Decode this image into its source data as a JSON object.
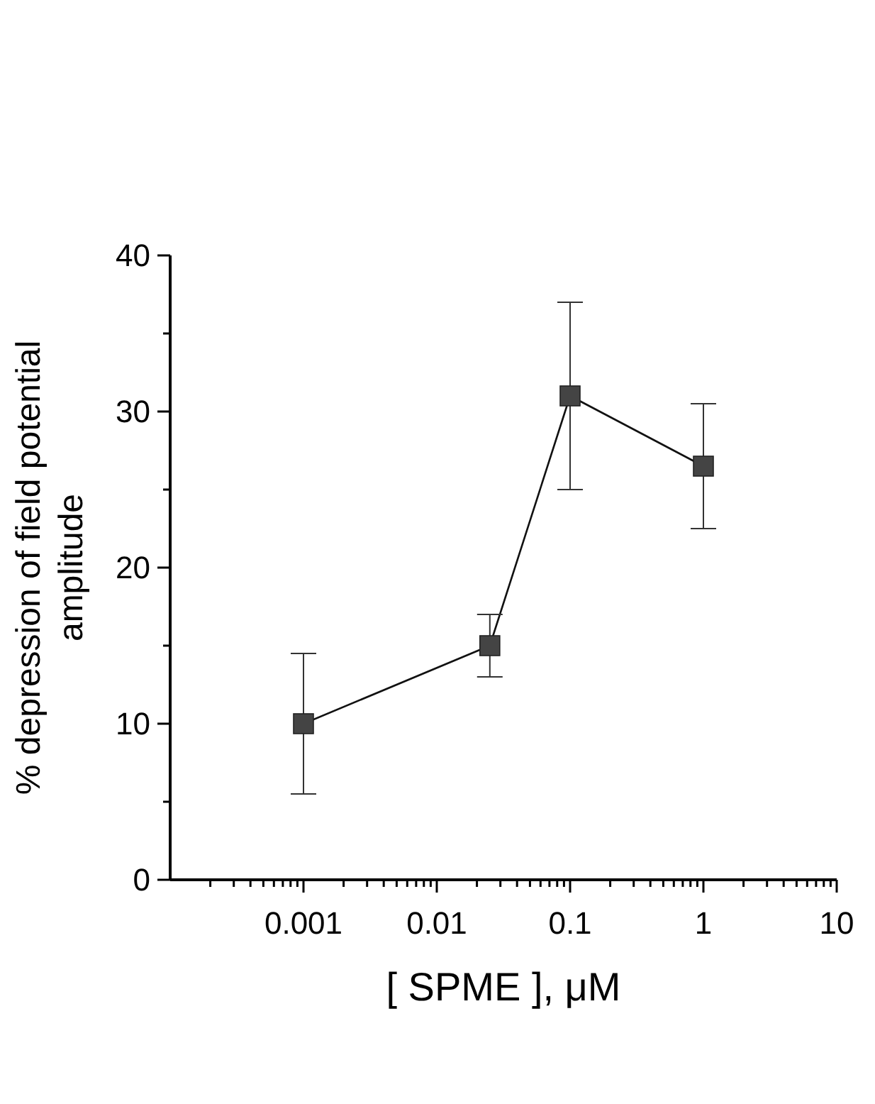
{
  "chart_data": {
    "type": "line",
    "xlabel": "[ SPME ], μM",
    "ylabel": "% depression of  field potential\namplitude",
    "x": [
      0.001,
      0.025,
      0.1,
      1
    ],
    "series": [
      {
        "color": "#444444",
        "values": [
          10,
          15,
          31,
          26.5
        ],
        "errors": [
          4.5,
          2,
          6,
          4
        ]
      }
    ],
    "marker": "square",
    "log": "x",
    "grid": false,
    "xlim": [
      0.0001,
      10
    ],
    "xticks": [
      {
        "value": 0.0002,
        "label": null
      },
      {
        "value": 0.0003,
        "label": null
      },
      {
        "value": 0.0004,
        "label": null
      },
      {
        "value": 0.0005,
        "label": null
      },
      {
        "value": 0.0006,
        "label": null
      },
      {
        "value": 0.0007,
        "label": null
      },
      {
        "value": 0.0008,
        "label": null
      },
      {
        "value": 0.0009,
        "label": null
      },
      0.001,
      {
        "value": 0.002,
        "label": null
      },
      {
        "value": 0.003,
        "label": null
      },
      {
        "value": 0.004,
        "label": null
      },
      {
        "value": 0.005,
        "label": null
      },
      {
        "value": 0.006,
        "label": null
      },
      {
        "value": 0.007,
        "label": null
      },
      {
        "value": 0.008,
        "label": null
      },
      {
        "value": 0.009,
        "label": null
      },
      0.01,
      {
        "value": 0.02,
        "label": null
      },
      {
        "value": 0.03,
        "label": null
      },
      {
        "value": 0.04,
        "label": null
      },
      {
        "value": 0.05,
        "label": null
      },
      {
        "value": 0.06,
        "label": null
      },
      {
        "value": 0.07,
        "label": null
      },
      {
        "value": 0.08,
        "label": null
      },
      {
        "value": 0.09,
        "label": null
      },
      0.1,
      {
        "value": 0.2,
        "label": null
      },
      {
        "value": 0.3,
        "label": null
      },
      {
        "value": 0.4,
        "label": null
      },
      {
        "value": 0.5,
        "label": null
      },
      {
        "value": 0.6,
        "label": null
      },
      {
        "value": 0.7,
        "label": null
      },
      {
        "value": 0.8,
        "label": null
      },
      {
        "value": 0.9,
        "label": null
      },
      1,
      {
        "value": 2,
        "label": null
      },
      {
        "value": 3,
        "label": null
      },
      {
        "value": 4,
        "label": null
      },
      {
        "value": 5,
        "label": null
      },
      {
        "value": 6,
        "label": null
      },
      {
        "value": 7,
        "label": null
      },
      {
        "value": 8,
        "label": null
      },
      {
        "value": 9,
        "label": null
      },
      10
    ],
    "ylim": [
      0,
      40
    ],
    "yticks": [
      0,
      {
        "value": 5,
        "label": null
      },
      10,
      {
        "value": 15,
        "label": null
      },
      20,
      {
        "value": 25,
        "label": null
      },
      30,
      {
        "value": 35,
        "label": null
      },
      40
    ]
  }
}
